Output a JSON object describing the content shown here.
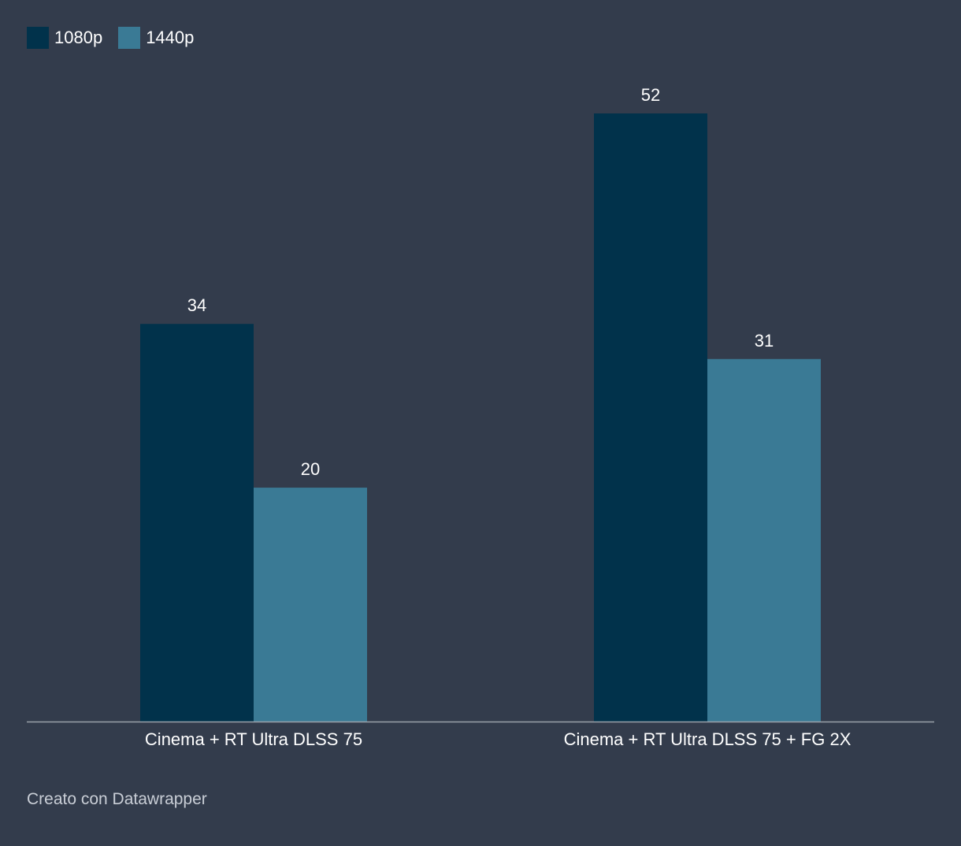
{
  "chart_data": {
    "type": "bar",
    "categories": [
      "Cinema + RT Ultra DLSS 75",
      "Cinema + RT Ultra DLSS 75 + FG 2X"
    ],
    "series": [
      {
        "name": "1080p",
        "values": [
          34,
          52
        ],
        "color": "#01324b"
      },
      {
        "name": "1440p",
        "values": [
          20,
          31
        ],
        "color": "#3a7a95"
      }
    ],
    "ylim": [
      0,
      52
    ],
    "grid": false,
    "legend_position": "top-left",
    "show_data_labels": true
  },
  "footer": {
    "credit": "Creato con Datawrapper"
  },
  "colors": {
    "background": "#333c4c",
    "baseline": "#9aa0a8",
    "text": "#ffffff",
    "footer_text": "#c9ced6"
  }
}
